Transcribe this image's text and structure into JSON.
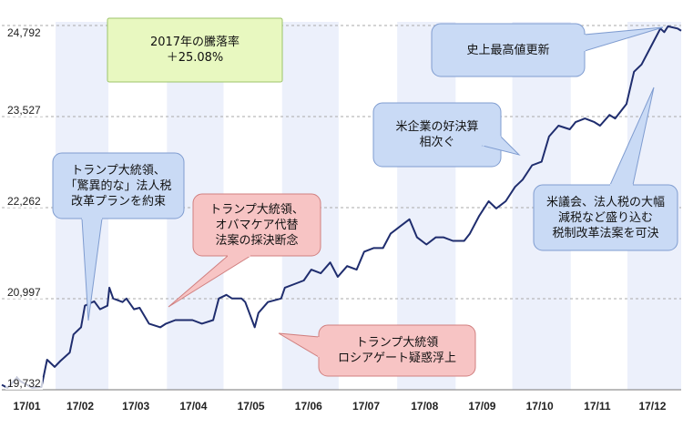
{
  "chart_data": {
    "type": "line",
    "title": "",
    "xlabel": "",
    "ylabel": "",
    "x_ticks": [
      "17/01",
      "17/02",
      "17/03",
      "17/04",
      "17/05",
      "17/06",
      "17/07",
      "17/08",
      "17/09",
      "17/10",
      "17/11",
      "17/12"
    ],
    "y_ticks": [
      "19,732",
      "20,997",
      "22,262",
      "23,527",
      "24,792"
    ],
    "ylim": [
      19732,
      24792
    ],
    "grid": "horizontal dashed lines at tick values; alternating vertical month bands",
    "series": [
      {
        "name": "",
        "color": "#1f2d6e",
        "points": [
          [
            "17/01/03",
            19800
          ],
          [
            "17/01/06",
            19760
          ],
          [
            "17/01/11",
            19900
          ],
          [
            "17/01/13",
            19850
          ],
          [
            "17/01/19",
            19760
          ],
          [
            "17/01/24",
            19770
          ],
          [
            "17/01/27",
            20150
          ],
          [
            "17/01/31",
            20050
          ],
          [
            "17/02/03",
            20130
          ],
          [
            "17/02/08",
            20250
          ],
          [
            "17/02/10",
            20500
          ],
          [
            "17/02/14",
            20600
          ],
          [
            "17/02/16",
            20900
          ],
          [
            "17/02/21",
            20960
          ],
          [
            "17/02/24",
            20850
          ],
          [
            "17/02/28",
            20900
          ],
          [
            "17/03/01",
            21150
          ],
          [
            "17/03/03",
            21000
          ],
          [
            "17/03/08",
            20950
          ],
          [
            "17/03/10",
            21000
          ],
          [
            "17/03/14",
            20850
          ],
          [
            "17/03/17",
            20870
          ],
          [
            "17/03/22",
            20650
          ],
          [
            "17/03/28",
            20600
          ],
          [
            "17/03/31",
            20650
          ],
          [
            "17/04/05",
            20700
          ],
          [
            "17/04/10",
            20700
          ],
          [
            "17/04/14",
            20700
          ],
          [
            "17/04/19",
            20650
          ],
          [
            "17/04/25",
            20700
          ],
          [
            "17/04/28",
            21000
          ],
          [
            "17/05/02",
            21050
          ],
          [
            "17/05/05",
            21000
          ],
          [
            "17/05/10",
            21000
          ],
          [
            "17/05/12",
            20950
          ],
          [
            "17/05/17",
            20600
          ],
          [
            "17/05/19",
            20800
          ],
          [
            "17/05/24",
            20950
          ],
          [
            "17/05/31",
            21000
          ],
          [
            "17/06/02",
            21150
          ],
          [
            "17/06/07",
            21200
          ],
          [
            "17/06/12",
            21250
          ],
          [
            "17/06/16",
            21400
          ],
          [
            "17/06/21",
            21350
          ],
          [
            "17/06/26",
            21500
          ],
          [
            "17/06/30",
            21300
          ],
          [
            "17/07/05",
            21450
          ],
          [
            "17/07/10",
            21400
          ],
          [
            "17/07/14",
            21650
          ],
          [
            "17/07/19",
            21700
          ],
          [
            "17/07/24",
            21700
          ],
          [
            "17/07/28",
            21900
          ],
          [
            "17/08/02",
            22000
          ],
          [
            "17/08/07",
            22100
          ],
          [
            "17/08/11",
            21850
          ],
          [
            "17/08/16",
            21750
          ],
          [
            "17/08/21",
            21850
          ],
          [
            "17/08/25",
            21850
          ],
          [
            "17/08/30",
            21800
          ],
          [
            "17/09/05",
            21800
          ],
          [
            "17/09/08",
            21900
          ],
          [
            "17/09/13",
            22150
          ],
          [
            "17/09/18",
            22350
          ],
          [
            "17/09/22",
            22250
          ],
          [
            "17/09/27",
            22350
          ],
          [
            "17/10/02",
            22550
          ],
          [
            "17/10/06",
            22650
          ],
          [
            "17/10/11",
            22850
          ],
          [
            "17/10/16",
            22900
          ],
          [
            "17/10/20",
            23250
          ],
          [
            "17/10/25",
            23400
          ],
          [
            "17/10/31",
            23350
          ],
          [
            "17/11/03",
            23450
          ],
          [
            "17/11/08",
            23500
          ],
          [
            "17/11/13",
            23450
          ],
          [
            "17/11/16",
            23400
          ],
          [
            "17/11/21",
            23550
          ],
          [
            "17/11/24",
            23500
          ],
          [
            "17/11/30",
            23700
          ],
          [
            "17/12/04",
            24150
          ],
          [
            "17/12/08",
            24250
          ],
          [
            "17/12/13",
            24500
          ],
          [
            "17/12/18",
            24750
          ],
          [
            "17/12/20",
            24700
          ],
          [
            "17/12/22",
            24780
          ],
          [
            "17/12/27",
            24750
          ],
          [
            "17/12/29",
            24720
          ]
        ]
      }
    ],
    "annotations": [
      {
        "id": "ytd",
        "text": "2017年の騰落率\n＋25.08%"
      },
      {
        "id": "trump-tax",
        "text": "トランプ大統領、\n「驚異的な」法人税\n改革プランを約束"
      },
      {
        "id": "obamacare",
        "text": "トランプ大統領、\nオバマケア代替\n法案の採決断念"
      },
      {
        "id": "russiagate",
        "text": "トランプ大統領\nロシアゲート疑惑浮上"
      },
      {
        "id": "earnings",
        "text": "米企業の好決算\n相次ぐ"
      },
      {
        "id": "record-high",
        "text": "史上最高値更新"
      },
      {
        "id": "tax-reform",
        "text": "米議会、法人税の大幅\n減税など盛り込む\n税制改革法案を可決"
      }
    ]
  },
  "colors": {
    "line": "#1f2d6e",
    "band": "#ecf0fb",
    "grid": "#aaaaaa",
    "callout_blue": "#c9daf5",
    "callout_pink": "#f7c4c4",
    "callout_green": "#e8f8c0"
  }
}
